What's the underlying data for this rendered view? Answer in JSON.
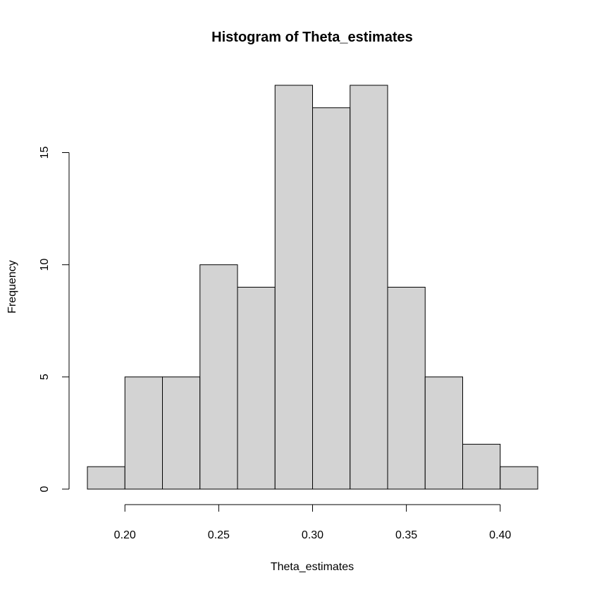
{
  "chart_data": {
    "type": "histogram",
    "title": "Histogram of Theta_estimates",
    "xlabel": "Theta_estimates",
    "ylabel": "Frequency",
    "bins": [
      {
        "from": 0.18,
        "to": 0.2,
        "count": 1
      },
      {
        "from": 0.2,
        "to": 0.22,
        "count": 5
      },
      {
        "from": 0.22,
        "to": 0.24,
        "count": 5
      },
      {
        "from": 0.24,
        "to": 0.26,
        "count": 10
      },
      {
        "from": 0.26,
        "to": 0.28,
        "count": 9
      },
      {
        "from": 0.28,
        "to": 0.3,
        "count": 18
      },
      {
        "from": 0.3,
        "to": 0.32,
        "count": 17
      },
      {
        "from": 0.32,
        "to": 0.34,
        "count": 18
      },
      {
        "from": 0.34,
        "to": 0.36,
        "count": 9
      },
      {
        "from": 0.36,
        "to": 0.38,
        "count": 5
      },
      {
        "from": 0.38,
        "to": 0.4,
        "count": 2
      },
      {
        "from": 0.4,
        "to": 0.42,
        "count": 1
      }
    ],
    "x_ticks": [
      "0.20",
      "0.25",
      "0.30",
      "0.35",
      "0.40"
    ],
    "y_ticks": [
      "0",
      "5",
      "10",
      "15"
    ],
    "xlim": [
      0.18,
      0.42
    ],
    "ylim": [
      0,
      18
    ],
    "bar_color": "#d3d3d3",
    "grid": false
  }
}
